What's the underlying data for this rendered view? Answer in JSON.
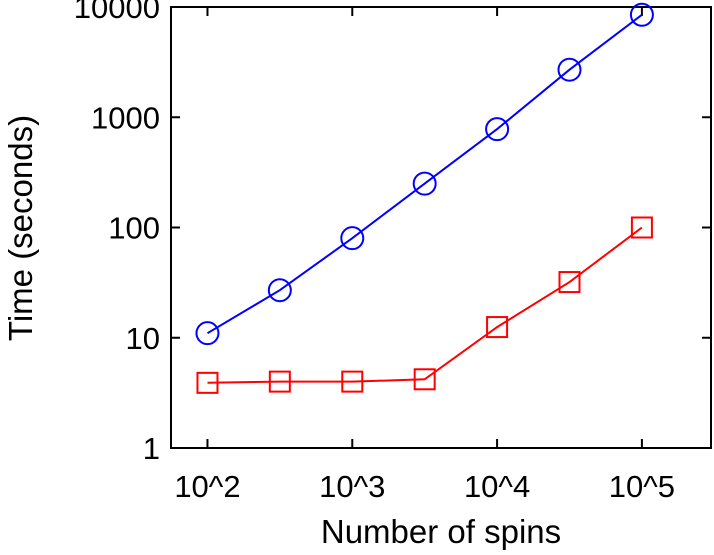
{
  "chart_data": {
    "type": "line",
    "title": "",
    "xlabel": "Number of spins",
    "ylabel": "Time (seconds)",
    "x_scale": "log",
    "y_scale": "log",
    "xlim": [
      56,
      300000
    ],
    "ylim": [
      1,
      10000
    ],
    "grid": false,
    "legend": "none",
    "x_ticks": [
      {
        "value": 100,
        "label": "10^2"
      },
      {
        "value": 1000,
        "label": "10^3"
      },
      {
        "value": 10000,
        "label": "10^4"
      },
      {
        "value": 100000,
        "label": "10^5"
      }
    ],
    "y_ticks": [
      {
        "value": 1,
        "label": "1"
      },
      {
        "value": 10,
        "label": "10"
      },
      {
        "value": 100,
        "label": "100"
      },
      {
        "value": 1000,
        "label": "1000"
      },
      {
        "value": 10000,
        "label": "10000"
      }
    ],
    "series": [
      {
        "color": "#0000ff",
        "marker": "circle",
        "x": [
          100,
          316,
          1000,
          3162,
          10000,
          31623,
          100000
        ],
        "y": [
          11,
          27,
          80,
          250,
          780,
          2700,
          8500
        ]
      },
      {
        "color": "#ff0000",
        "marker": "square",
        "x": [
          100,
          316,
          1000,
          3162,
          10000,
          31623,
          100000
        ],
        "y": [
          3.9,
          4.0,
          4.0,
          4.2,
          12.5,
          32,
          100
        ]
      }
    ]
  }
}
